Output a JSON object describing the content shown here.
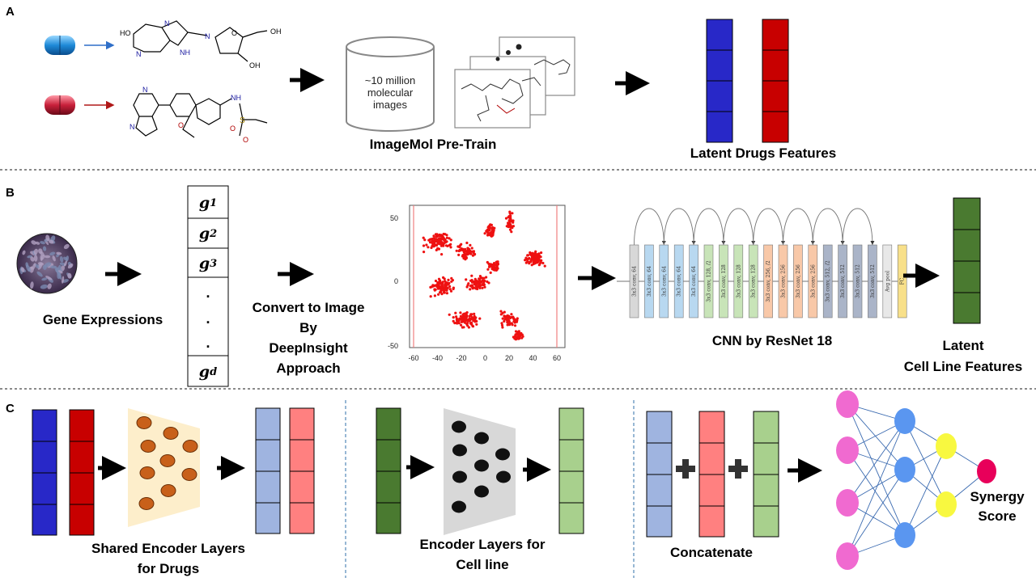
{
  "panels": {
    "a": "A",
    "b": "B",
    "c": "C"
  },
  "panel_a": {
    "database_text": [
      "~10 million",
      "molecular",
      "images"
    ],
    "pretrain_label": "ImageMol Pre-Train",
    "latent_drugs_label": "Latent Drugs Features"
  },
  "panel_b": {
    "gene_expressions_label": "Gene Expressions",
    "gene_vector": [
      "g1",
      "g2",
      "g3",
      "gd"
    ],
    "gene_subscripts": [
      "1",
      "2",
      "3",
      "d"
    ],
    "dots": ".",
    "convert_label": [
      "Convert to Image",
      "By",
      "DeepInsight",
      "Approach"
    ],
    "scatter_x_ticks": [
      "-60",
      "-40",
      "-20",
      "0",
      "20",
      "40",
      "60"
    ],
    "scatter_y_ticks": [
      "50",
      "0",
      "-50"
    ],
    "cnn_label": "CNN by ResNet 18",
    "resnet_layers": [
      "3x3 conv, 64",
      "3x3 conv, 64",
      "3x3 conv, 64",
      "3x3 conv, 64",
      "3x3 conv, 64",
      "3x3 conv, 128, /2",
      "3x3 conv, 128",
      "3x3 conv, 128",
      "3x3 conv, 128",
      "3x3 conv, 256, /2",
      "3x3 conv, 256",
      "3x3 conv, 256",
      "3x3 conv, 256",
      "3x3 conv, 512, /2",
      "3x3 conv, 512",
      "3x3 conv, 512",
      "3x3 conv, 512",
      "Avg pool",
      "FC"
    ],
    "latent_cell_label": [
      "Latent",
      "Cell Line Features"
    ]
  },
  "panel_c": {
    "shared_encoder_label": [
      "Shared Encoder Layers",
      "for Drugs"
    ],
    "cell_encoder_label": [
      "Encoder Layers for",
      "Cell line"
    ],
    "concatenate_label": "Concatenate",
    "synergy_label": [
      "Synergy",
      "Score"
    ]
  },
  "molecules": {
    "atom_labels_top": [
      "HO",
      "N",
      "N",
      "N",
      "NH",
      "O",
      "OH",
      "OH"
    ],
    "atom_labels_bottom": [
      "N",
      "N",
      "O",
      "NH",
      "S",
      "O",
      "O"
    ]
  },
  "colors": {
    "drug1": "#2828c8",
    "drug2": "#c80000",
    "cell": "#4a7a30",
    "drug1_light": "#9fb4e0",
    "drug2_light": "#ff8080",
    "cell_light": "#a8d08d",
    "nn_pink": "#f06ad0",
    "nn_blue": "#5a96f0",
    "nn_yellow": "#f8f840",
    "nn_red": "#e8005a",
    "scatter": "#ee1111"
  }
}
